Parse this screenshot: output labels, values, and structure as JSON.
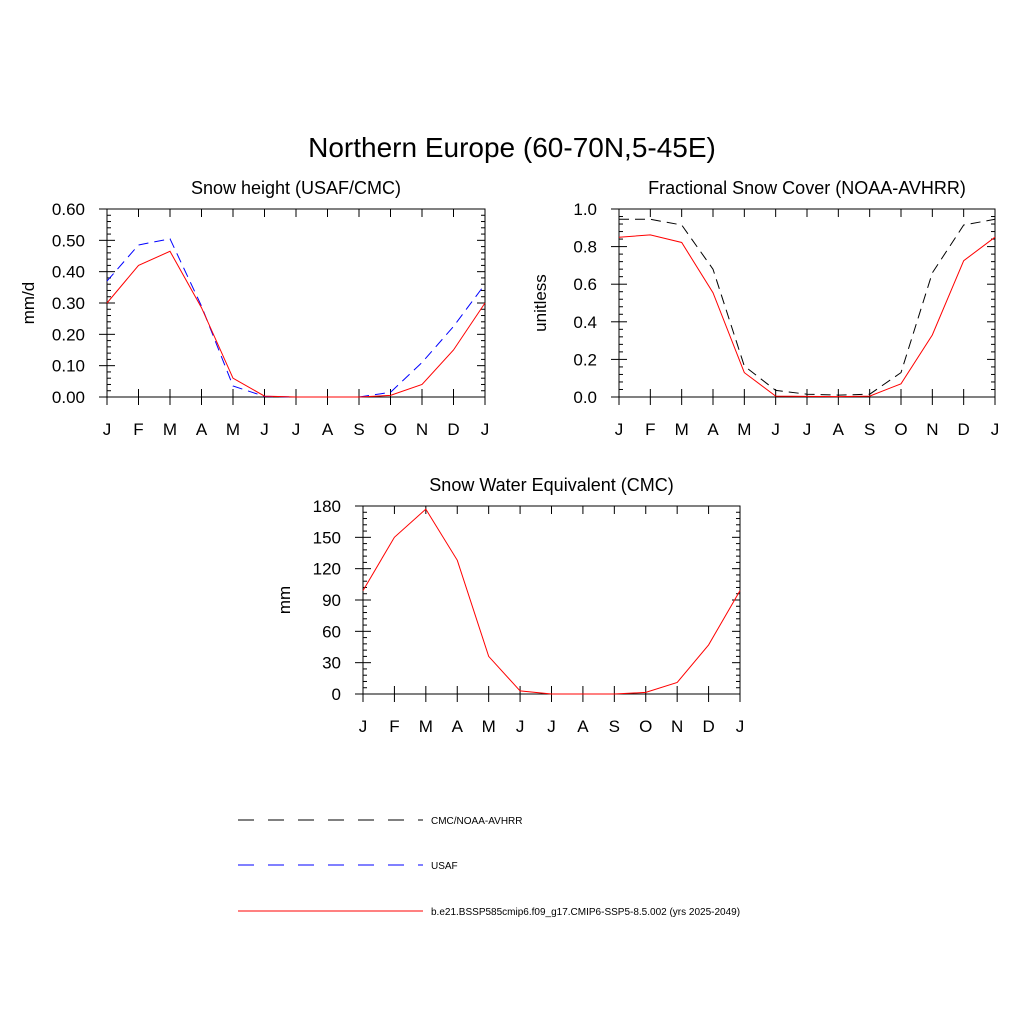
{
  "figure_title": "Northern Europe (60-70N,5-45E)",
  "legend": [
    {
      "label": "CMC/NOAA-AVHRR",
      "color": "#000000",
      "dash": "dashed"
    },
    {
      "label": "USAF",
      "color": "#0000ff",
      "dash": "dashed"
    },
    {
      "label": "b.e21.BSSP585cmip6.f09_g17.CMIP6-SSP5-8.5.002 (yrs 2025-2049)",
      "color": "#ff0000",
      "dash": "solid"
    }
  ],
  "chart_data": [
    {
      "type": "line",
      "title": "Snow height (USAF/CMC)",
      "xlabel": "",
      "ylabel": "mm/d",
      "categories": [
        "J",
        "F",
        "M",
        "A",
        "M",
        "J",
        "J",
        "A",
        "S",
        "O",
        "N",
        "D",
        "J"
      ],
      "ylim": [
        0,
        0.6
      ],
      "yticks": [
        0.0,
        0.1,
        0.2,
        0.3,
        0.4,
        0.5,
        0.6
      ],
      "ytick_labels": [
        "0.00",
        "0.10",
        "0.20",
        "0.30",
        "0.40",
        "0.50",
        "0.60"
      ],
      "series": [
        {
          "name": "CMC/NOAA-AVHRR",
          "color": "#000000",
          "dash": "dashed",
          "values": [
            0,
            0,
            0,
            0,
            0,
            0,
            0,
            0,
            0,
            0,
            0,
            0,
            0
          ]
        },
        {
          "name": "USAF",
          "color": "#0000ff",
          "dash": "dashed",
          "values": [
            0.37,
            0.485,
            0.505,
            0.29,
            0.035,
            0.002,
            0,
            0,
            0,
            0.015,
            0.11,
            0.225,
            0.36
          ]
        },
        {
          "name": "b.e21.BSSP585cmip6.f09_g17.CMIP6-SSP5-8.5.002 (yrs 2025-2049)",
          "color": "#ff0000",
          "dash": "solid",
          "values": [
            0.3,
            0.42,
            0.465,
            0.285,
            0.06,
            0.003,
            0,
            0,
            0,
            0.005,
            0.04,
            0.15,
            0.3
          ]
        }
      ]
    },
    {
      "type": "line",
      "title": "Fractional Snow Cover (NOAA-AVHRR)",
      "xlabel": "",
      "ylabel": "unitless",
      "categories": [
        "J",
        "F",
        "M",
        "A",
        "M",
        "J",
        "J",
        "A",
        "S",
        "O",
        "N",
        "D",
        "J"
      ],
      "ylim": [
        0,
        1.0
      ],
      "yticks": [
        0.0,
        0.2,
        0.4,
        0.6,
        0.8,
        1.0
      ],
      "ytick_labels": [
        "0.0",
        "0.2",
        "0.4",
        "0.6",
        "0.8",
        "1.0"
      ],
      "series": [
        {
          "name": "CMC/NOAA-AVHRR",
          "color": "#000000",
          "dash": "dashed",
          "values": [
            0.945,
            0.945,
            0.915,
            0.68,
            0.165,
            0.035,
            0.015,
            0.01,
            0.015,
            0.13,
            0.66,
            0.915,
            0.945
          ]
        },
        {
          "name": "b.e21.BSSP585cmip6.f09_g17.CMIP6-SSP5-8.5.002 (yrs 2025-2049)",
          "color": "#ff0000",
          "dash": "solid",
          "values": [
            0.85,
            0.862,
            0.822,
            0.555,
            0.13,
            0.005,
            0.003,
            0.002,
            0.005,
            0.07,
            0.33,
            0.725,
            0.85
          ]
        }
      ]
    },
    {
      "type": "line",
      "title": "Snow Water Equivalent (CMC)",
      "xlabel": "",
      "ylabel": "mm",
      "categories": [
        "J",
        "F",
        "M",
        "A",
        "M",
        "J",
        "J",
        "A",
        "S",
        "O",
        "N",
        "D",
        "J"
      ],
      "ylim": [
        0,
        180
      ],
      "yticks": [
        0,
        30,
        60,
        90,
        120,
        150,
        180
      ],
      "ytick_labels": [
        "0",
        "30",
        "60",
        "90",
        "120",
        "150",
        "180"
      ],
      "series": [
        {
          "name": "CMC/NOAA-AVHRR",
          "color": "#000000",
          "dash": "dashed",
          "values": [
            0,
            0,
            0,
            0,
            0,
            0,
            0,
            0,
            0,
            0,
            0,
            0,
            0
          ]
        },
        {
          "name": "b.e21.BSSP585cmip6.f09_g17.CMIP6-SSP5-8.5.002 (yrs 2025-2049)",
          "color": "#ff0000",
          "dash": "solid",
          "values": [
            99,
            150,
            177,
            128,
            36,
            3,
            0,
            0,
            0,
            1.5,
            11,
            47,
            99
          ]
        }
      ]
    }
  ]
}
